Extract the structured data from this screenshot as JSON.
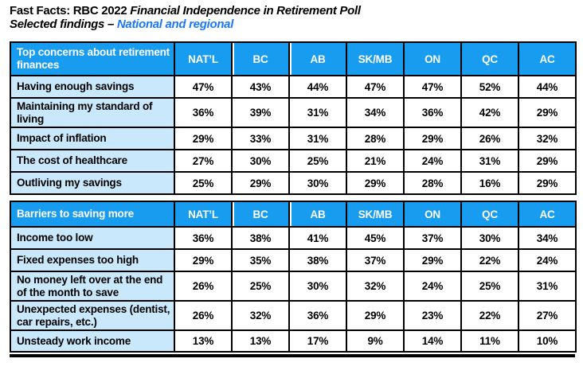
{
  "title": {
    "line1_prefix": "Fast Facts: RBC 2022",
    "line1_italic": "Financial Independence in Retirement Poll",
    "line2_prefix": "Selected findings –",
    "line2_accent": "National and regional"
  },
  "columns": [
    "NAT’L",
    "BC",
    "AB",
    "SK/MB",
    "ON",
    "QC",
    "AC"
  ],
  "tables": [
    {
      "section_header": "Top concerns about retirement finances",
      "rows": [
        {
          "label": "Having enough savings",
          "values": [
            "47%",
            "43%",
            "44%",
            "47%",
            "47%",
            "52%",
            "44%"
          ]
        },
        {
          "label": "Maintaining my standard of living",
          "values": [
            "36%",
            "39%",
            "31%",
            "34%",
            "36%",
            "42%",
            "29%"
          ]
        },
        {
          "label": "Impact of inflation",
          "values": [
            "29%",
            "33%",
            "31%",
            "28%",
            "29%",
            "26%",
            "32%"
          ]
        },
        {
          "label": "The cost of healthcare",
          "values": [
            "27%",
            "30%",
            "25%",
            "21%",
            "24%",
            "31%",
            "29%"
          ]
        },
        {
          "label": "Outliving my savings",
          "values": [
            "25%",
            "29%",
            "30%",
            "29%",
            "28%",
            "16%",
            "29%"
          ]
        }
      ]
    },
    {
      "section_header": "Barriers to saving more",
      "rows": [
        {
          "label": "Income too low",
          "values": [
            "36%",
            "38%",
            "41%",
            "45%",
            "37%",
            "30%",
            "34%"
          ]
        },
        {
          "label": "Fixed expenses too high",
          "values": [
            "29%",
            "35%",
            "38%",
            "37%",
            "29%",
            "22%",
            "24%"
          ]
        },
        {
          "label": "No money left over at the end of the month to save",
          "values": [
            "26%",
            "25%",
            "30%",
            "32%",
            "24%",
            "25%",
            "31%"
          ]
        },
        {
          "label": "Unexpected expenses (dentist, car repairs, etc.)",
          "values": [
            "26%",
            "32%",
            "36%",
            "29%",
            "23%",
            "22%",
            "27%"
          ]
        },
        {
          "label": "Unsteady work income",
          "values": [
            "13%",
            "13%",
            "17%",
            "9%",
            "14%",
            "11%",
            "10%"
          ]
        }
      ]
    }
  ],
  "colors": {
    "header-blue": "#189CF0",
    "label-blue": "#C9E8FB",
    "accent-blue": "#1B78FB",
    "border-black": "#000000"
  }
}
